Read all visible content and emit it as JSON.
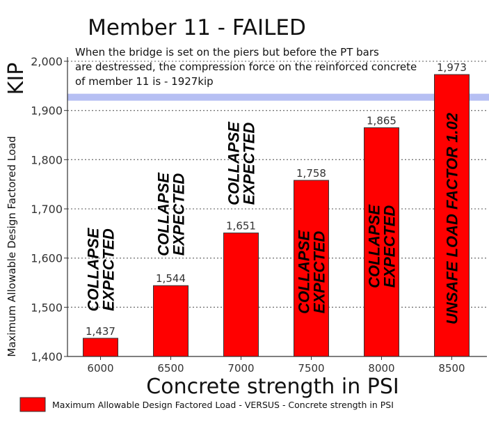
{
  "chart_data": {
    "type": "bar",
    "title": "Member 11 - FAILED",
    "unit_label": "KIP",
    "xlabel": "Concrete strength in PSI",
    "ylabel": "Maximum Allowable Design Factored Load",
    "categories": [
      "6000",
      "6500",
      "7000",
      "7500",
      "8000",
      "8500"
    ],
    "series": [
      {
        "name": "Maximum Allowable Design Factored Load - VERSUS - Concrete strength in PSI",
        "values": [
          1437,
          1544,
          1651,
          1758,
          1865,
          1973
        ],
        "value_labels": [
          "1,437",
          "1,544",
          "1,651",
          "1,758",
          "1,865",
          "1,973"
        ],
        "color": "#ff0000"
      }
    ],
    "ylim": [
      1400,
      2000
    ],
    "yticks": [
      {
        "value": 1400,
        "label": "1,400"
      },
      {
        "value": 1500,
        "label": "1,500"
      },
      {
        "value": 1600,
        "label": "1,600"
      },
      {
        "value": 1700,
        "label": "1,700"
      },
      {
        "value": 1800,
        "label": "1,800"
      },
      {
        "value": 1900,
        "label": "1,900"
      },
      {
        "value": 2000,
        "label": "2,000"
      }
    ],
    "grid": "horizontal-dotted",
    "legend_position": "bottom-left",
    "reference_line": {
      "value": 1927,
      "color": "#aab4f2"
    },
    "annotation_lines": [
      "When the bridge is set on the piers but before the PT bars",
      "are destressed, the compression  force on the reinforced concrete",
      "of member 11 is - 1927kip"
    ],
    "bar_notes": [
      {
        "lines": [
          "COLLAPSE",
          "EXPECTED"
        ],
        "placement": "above",
        "color": "#000000"
      },
      {
        "lines": [
          "COLLAPSE",
          "EXPECTED"
        ],
        "placement": "above",
        "color": "#000000"
      },
      {
        "lines": [
          "COLLAPSE",
          "EXPECTED"
        ],
        "placement": "above",
        "color": "#000000"
      },
      {
        "lines": [
          "COLLAPSE",
          "EXPECTED"
        ],
        "placement": "inside",
        "color": "#000000"
      },
      {
        "lines": [
          "COLLAPSE",
          "EXPECTED"
        ],
        "placement": "inside",
        "color": "#000000"
      },
      {
        "lines": [
          "UNSAFE LOAD FACTOR 1.02"
        ],
        "placement": "inside",
        "color": "#000000"
      }
    ]
  }
}
